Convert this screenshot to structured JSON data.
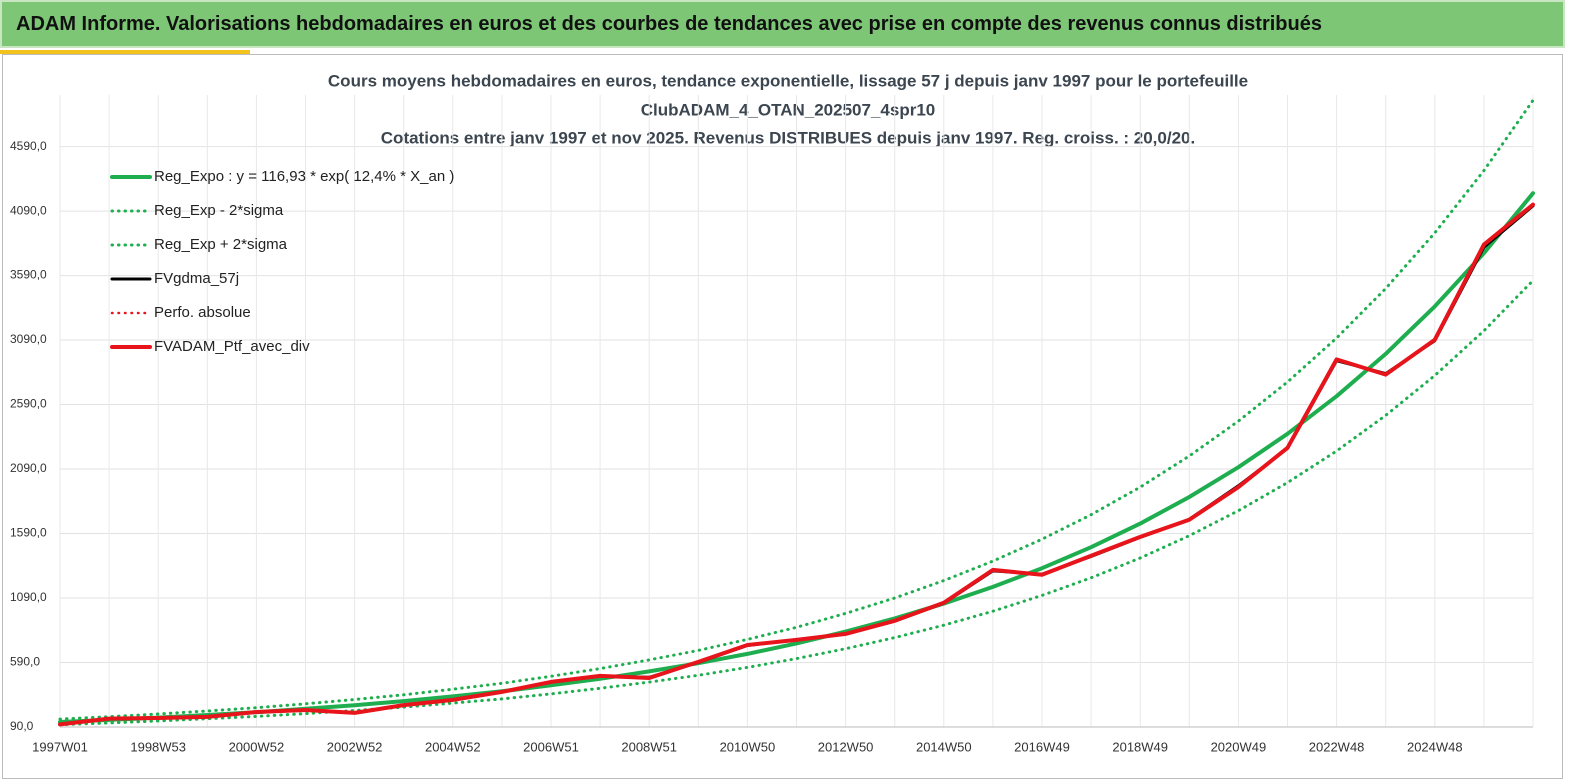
{
  "header_title": "ADAM Informe. Valorisations hebdomadaires en euros et des courbes de tendances avec prise en compte des revenus connus distribués",
  "chart_data": {
    "type": "line",
    "title": "Cours moyens hebdomadaires  en euros, tendance exponentielle, lissage 57 j depuis janv 1997 pour le portefeuille",
    "subtitle": [
      "ClubADAM_4_OTAN_202507_4spr10",
      "Cotations  entre janv 1997 et nov 2025. Revenus DISTRIBUES depuis janv 1997. Reg. croiss. : 20,0/20."
    ],
    "categories": [
      "1997W01",
      null,
      "1998W53",
      null,
      "2000W52",
      null,
      "2002W52",
      null,
      "2004W52",
      null,
      "2006W51",
      null,
      "2008W51",
      null,
      "2010W50",
      null,
      "2012W50",
      null,
      "2014W50",
      null,
      "2016W49",
      null,
      "2018W49",
      null,
      "2020W49",
      null,
      "2022W48",
      null,
      "2024W48",
      null,
      null
    ],
    "ylim": [
      90,
      4990
    ],
    "yticks": [
      {
        "value": 90,
        "label": "90,0"
      },
      {
        "value": 590,
        "label": "590,0"
      },
      {
        "value": 1090,
        "label": "1090,0"
      },
      {
        "value": 1590,
        "label": "1590,0"
      },
      {
        "value": 2090,
        "label": "2090,0"
      },
      {
        "value": 2590,
        "label": "2590,0"
      },
      {
        "value": 3090,
        "label": "3090,0"
      },
      {
        "value": 3590,
        "label": "3590,0"
      },
      {
        "value": 4090,
        "label": "4090,0"
      },
      {
        "value": 4590,
        "label": "4590,0"
      }
    ],
    "grid": true,
    "legend": "upper left",
    "series": [
      {
        "name": "Reg_Expo : y = 116,93 * exp( 12,4% *  X_an )",
        "color": "#1fae4f",
        "style": "solid",
        "values": [
          129,
          145,
          163,
          183,
          205,
          231,
          259,
          291,
          327,
          367,
          413,
          464,
          521,
          585,
          657,
          738,
          830,
          932,
          1047,
          1176,
          1321,
          1484,
          1667,
          1873,
          2104,
          2363,
          2655,
          2983,
          3351,
          3764,
          4229
        ]
      },
      {
        "name": "Reg_Exp - 2*sigma",
        "color": "#1fae4f",
        "style": "dotted",
        "values": [
          108,
          122,
          137,
          154,
          172,
          194,
          218,
          244,
          275,
          308,
          347,
          390,
          438,
          491,
          552,
          620,
          697,
          783,
          879,
          988,
          1110,
          1247,
          1400,
          1573,
          1767,
          1985,
          2230,
          2506,
          2815,
          3162,
          3552
        ]
      },
      {
        "name": "Reg_Exp + 2*sigma",
        "color": "#1fae4f",
        "style": "dotted",
        "values": [
          151,
          170,
          191,
          214,
          240,
          270,
          303,
          340,
          383,
          429,
          483,
          543,
          610,
          684,
          769,
          863,
          971,
          1090,
          1225,
          1376,
          1546,
          1736,
          1950,
          2191,
          2462,
          2765,
          3106,
          3490,
          3921,
          4404,
          4948
        ]
      },
      {
        "name": "FVgdma_57j",
        "color": "#000000",
        "style": "solid",
        "values": [
          110,
          152,
          160,
          170,
          204,
          220,
          202,
          258,
          298,
          360,
          438,
          484,
          475,
          590,
          722,
          768,
          810,
          910,
          1050,
          1300,
          1275,
          1412,
          1560,
          1700,
          1960,
          2250,
          2930,
          2830,
          3085,
          3810,
          4130
        ]
      },
      {
        "name": "Perfo. absolue",
        "color": "#e8141b",
        "style": "dotted",
        "values": [
          110,
          155,
          160,
          168,
          206,
          222,
          199,
          260,
          300,
          362,
          440,
          486,
          470,
          595,
          726,
          765,
          812,
          913,
          1053,
          1308,
          1270,
          1417,
          1564,
          1697,
          1950,
          2255,
          2940,
          2822,
          3093,
          3830,
          4140
        ]
      },
      {
        "name": "FVADAM_Ptf_avec_div",
        "color": "#e8141b",
        "style": "solid",
        "values": [
          110,
          155,
          160,
          168,
          206,
          222,
          199,
          260,
          300,
          362,
          440,
          486,
          470,
          595,
          726,
          765,
          812,
          913,
          1053,
          1308,
          1270,
          1417,
          1564,
          1697,
          1950,
          2255,
          2940,
          2822,
          3093,
          3830,
          4140
        ]
      }
    ]
  }
}
